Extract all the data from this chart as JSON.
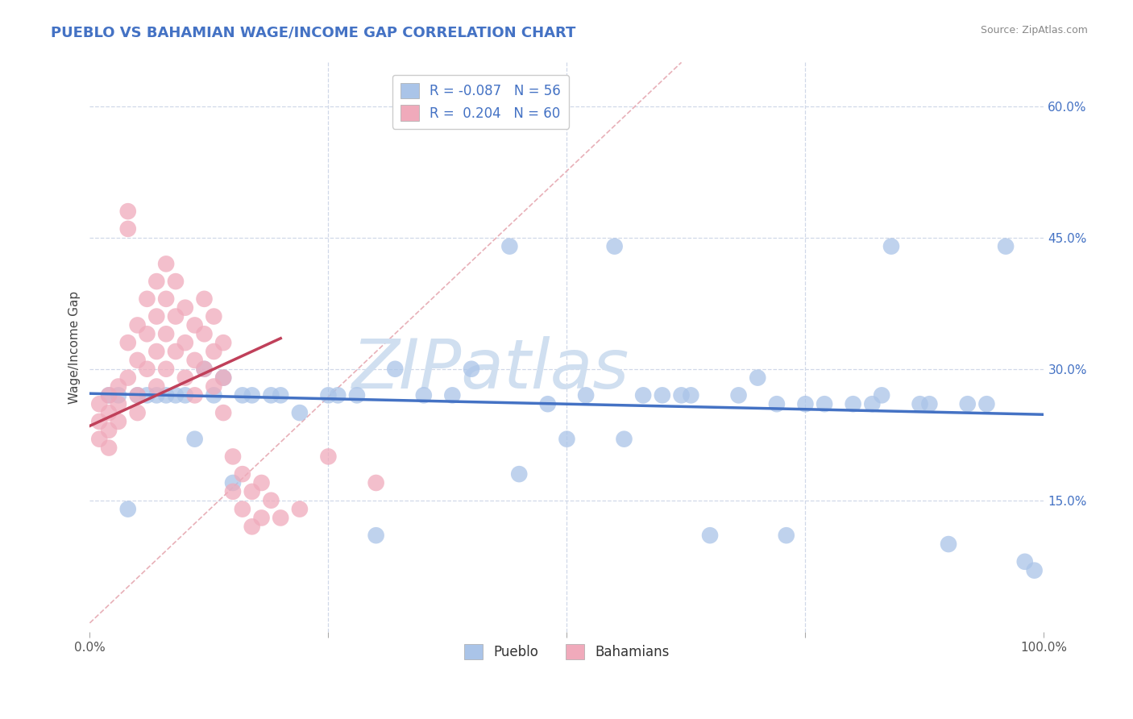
{
  "title": "PUEBLO VS BAHAMIAN WAGE/INCOME GAP CORRELATION CHART",
  "source_text": "Source: ZipAtlas.com",
  "ylabel": "Wage/Income Gap",
  "xlim": [
    0.0,
    1.0
  ],
  "ylim": [
    0.0,
    0.65
  ],
  "yticks_right": [
    0.15,
    0.3,
    0.45,
    0.6
  ],
  "yticklabels_right": [
    "15.0%",
    "30.0%",
    "45.0%",
    "60.0%"
  ],
  "color_pueblo": "#aac4e8",
  "color_bahamians": "#f0aabb",
  "color_pueblo_line": "#4472c4",
  "color_bahamians_line": "#c0405a",
  "title_color": "#4472c4",
  "title_fontsize": 13,
  "watermark": "ZIPatlas",
  "watermark_color": "#d0dff0",
  "grid_color": "#d0d8e8",
  "background_color": "#ffffff",
  "diag_color": "#e8b0b8",
  "pueblo_x": [
    0.02,
    0.04,
    0.06,
    0.08,
    0.1,
    0.12,
    0.14,
    0.16,
    0.17,
    0.19,
    0.22,
    0.25,
    0.28,
    0.32,
    0.35,
    0.38,
    0.44,
    0.48,
    0.52,
    0.55,
    0.58,
    0.6,
    0.62,
    0.65,
    0.68,
    0.7,
    0.72,
    0.75,
    0.77,
    0.8,
    0.82,
    0.84,
    0.87,
    0.88,
    0.9,
    0.92,
    0.94,
    0.96,
    0.98,
    0.05,
    0.09,
    0.13,
    0.2,
    0.3,
    0.4,
    0.5,
    0.56,
    0.63,
    0.73,
    0.83,
    0.03,
    0.07,
    0.11,
    0.15,
    0.26,
    0.45,
    0.99
  ],
  "pueblo_y": [
    0.27,
    0.14,
    0.27,
    0.27,
    0.27,
    0.3,
    0.29,
    0.27,
    0.27,
    0.27,
    0.25,
    0.27,
    0.27,
    0.3,
    0.27,
    0.27,
    0.44,
    0.26,
    0.27,
    0.44,
    0.27,
    0.27,
    0.27,
    0.11,
    0.27,
    0.29,
    0.26,
    0.26,
    0.26,
    0.26,
    0.26,
    0.44,
    0.26,
    0.26,
    0.1,
    0.26,
    0.26,
    0.44,
    0.08,
    0.27,
    0.27,
    0.27,
    0.27,
    0.11,
    0.3,
    0.22,
    0.22,
    0.27,
    0.11,
    0.27,
    0.27,
    0.27,
    0.22,
    0.17,
    0.27,
    0.18,
    0.07
  ],
  "bahamians_x": [
    0.01,
    0.01,
    0.01,
    0.02,
    0.02,
    0.02,
    0.02,
    0.03,
    0.03,
    0.03,
    0.04,
    0.04,
    0.04,
    0.04,
    0.05,
    0.05,
    0.05,
    0.05,
    0.06,
    0.06,
    0.06,
    0.07,
    0.07,
    0.07,
    0.07,
    0.08,
    0.08,
    0.08,
    0.08,
    0.09,
    0.09,
    0.09,
    0.1,
    0.1,
    0.1,
    0.11,
    0.11,
    0.11,
    0.12,
    0.12,
    0.12,
    0.13,
    0.13,
    0.13,
    0.14,
    0.14,
    0.14,
    0.15,
    0.15,
    0.16,
    0.16,
    0.17,
    0.17,
    0.18,
    0.18,
    0.19,
    0.2,
    0.22,
    0.25,
    0.3
  ],
  "bahamians_y": [
    0.26,
    0.24,
    0.22,
    0.27,
    0.25,
    0.23,
    0.21,
    0.28,
    0.26,
    0.24,
    0.48,
    0.46,
    0.33,
    0.29,
    0.35,
    0.31,
    0.27,
    0.25,
    0.38,
    0.34,
    0.3,
    0.4,
    0.36,
    0.32,
    0.28,
    0.42,
    0.38,
    0.34,
    0.3,
    0.4,
    0.36,
    0.32,
    0.37,
    0.33,
    0.29,
    0.35,
    0.31,
    0.27,
    0.38,
    0.34,
    0.3,
    0.36,
    0.32,
    0.28,
    0.33,
    0.29,
    0.25,
    0.2,
    0.16,
    0.18,
    0.14,
    0.16,
    0.12,
    0.17,
    0.13,
    0.15,
    0.13,
    0.14,
    0.2,
    0.17
  ],
  "blue_line_x": [
    0.0,
    1.0
  ],
  "blue_line_y": [
    0.272,
    0.248
  ],
  "pink_line_x": [
    0.0,
    0.2
  ],
  "pink_line_y": [
    0.235,
    0.335
  ]
}
